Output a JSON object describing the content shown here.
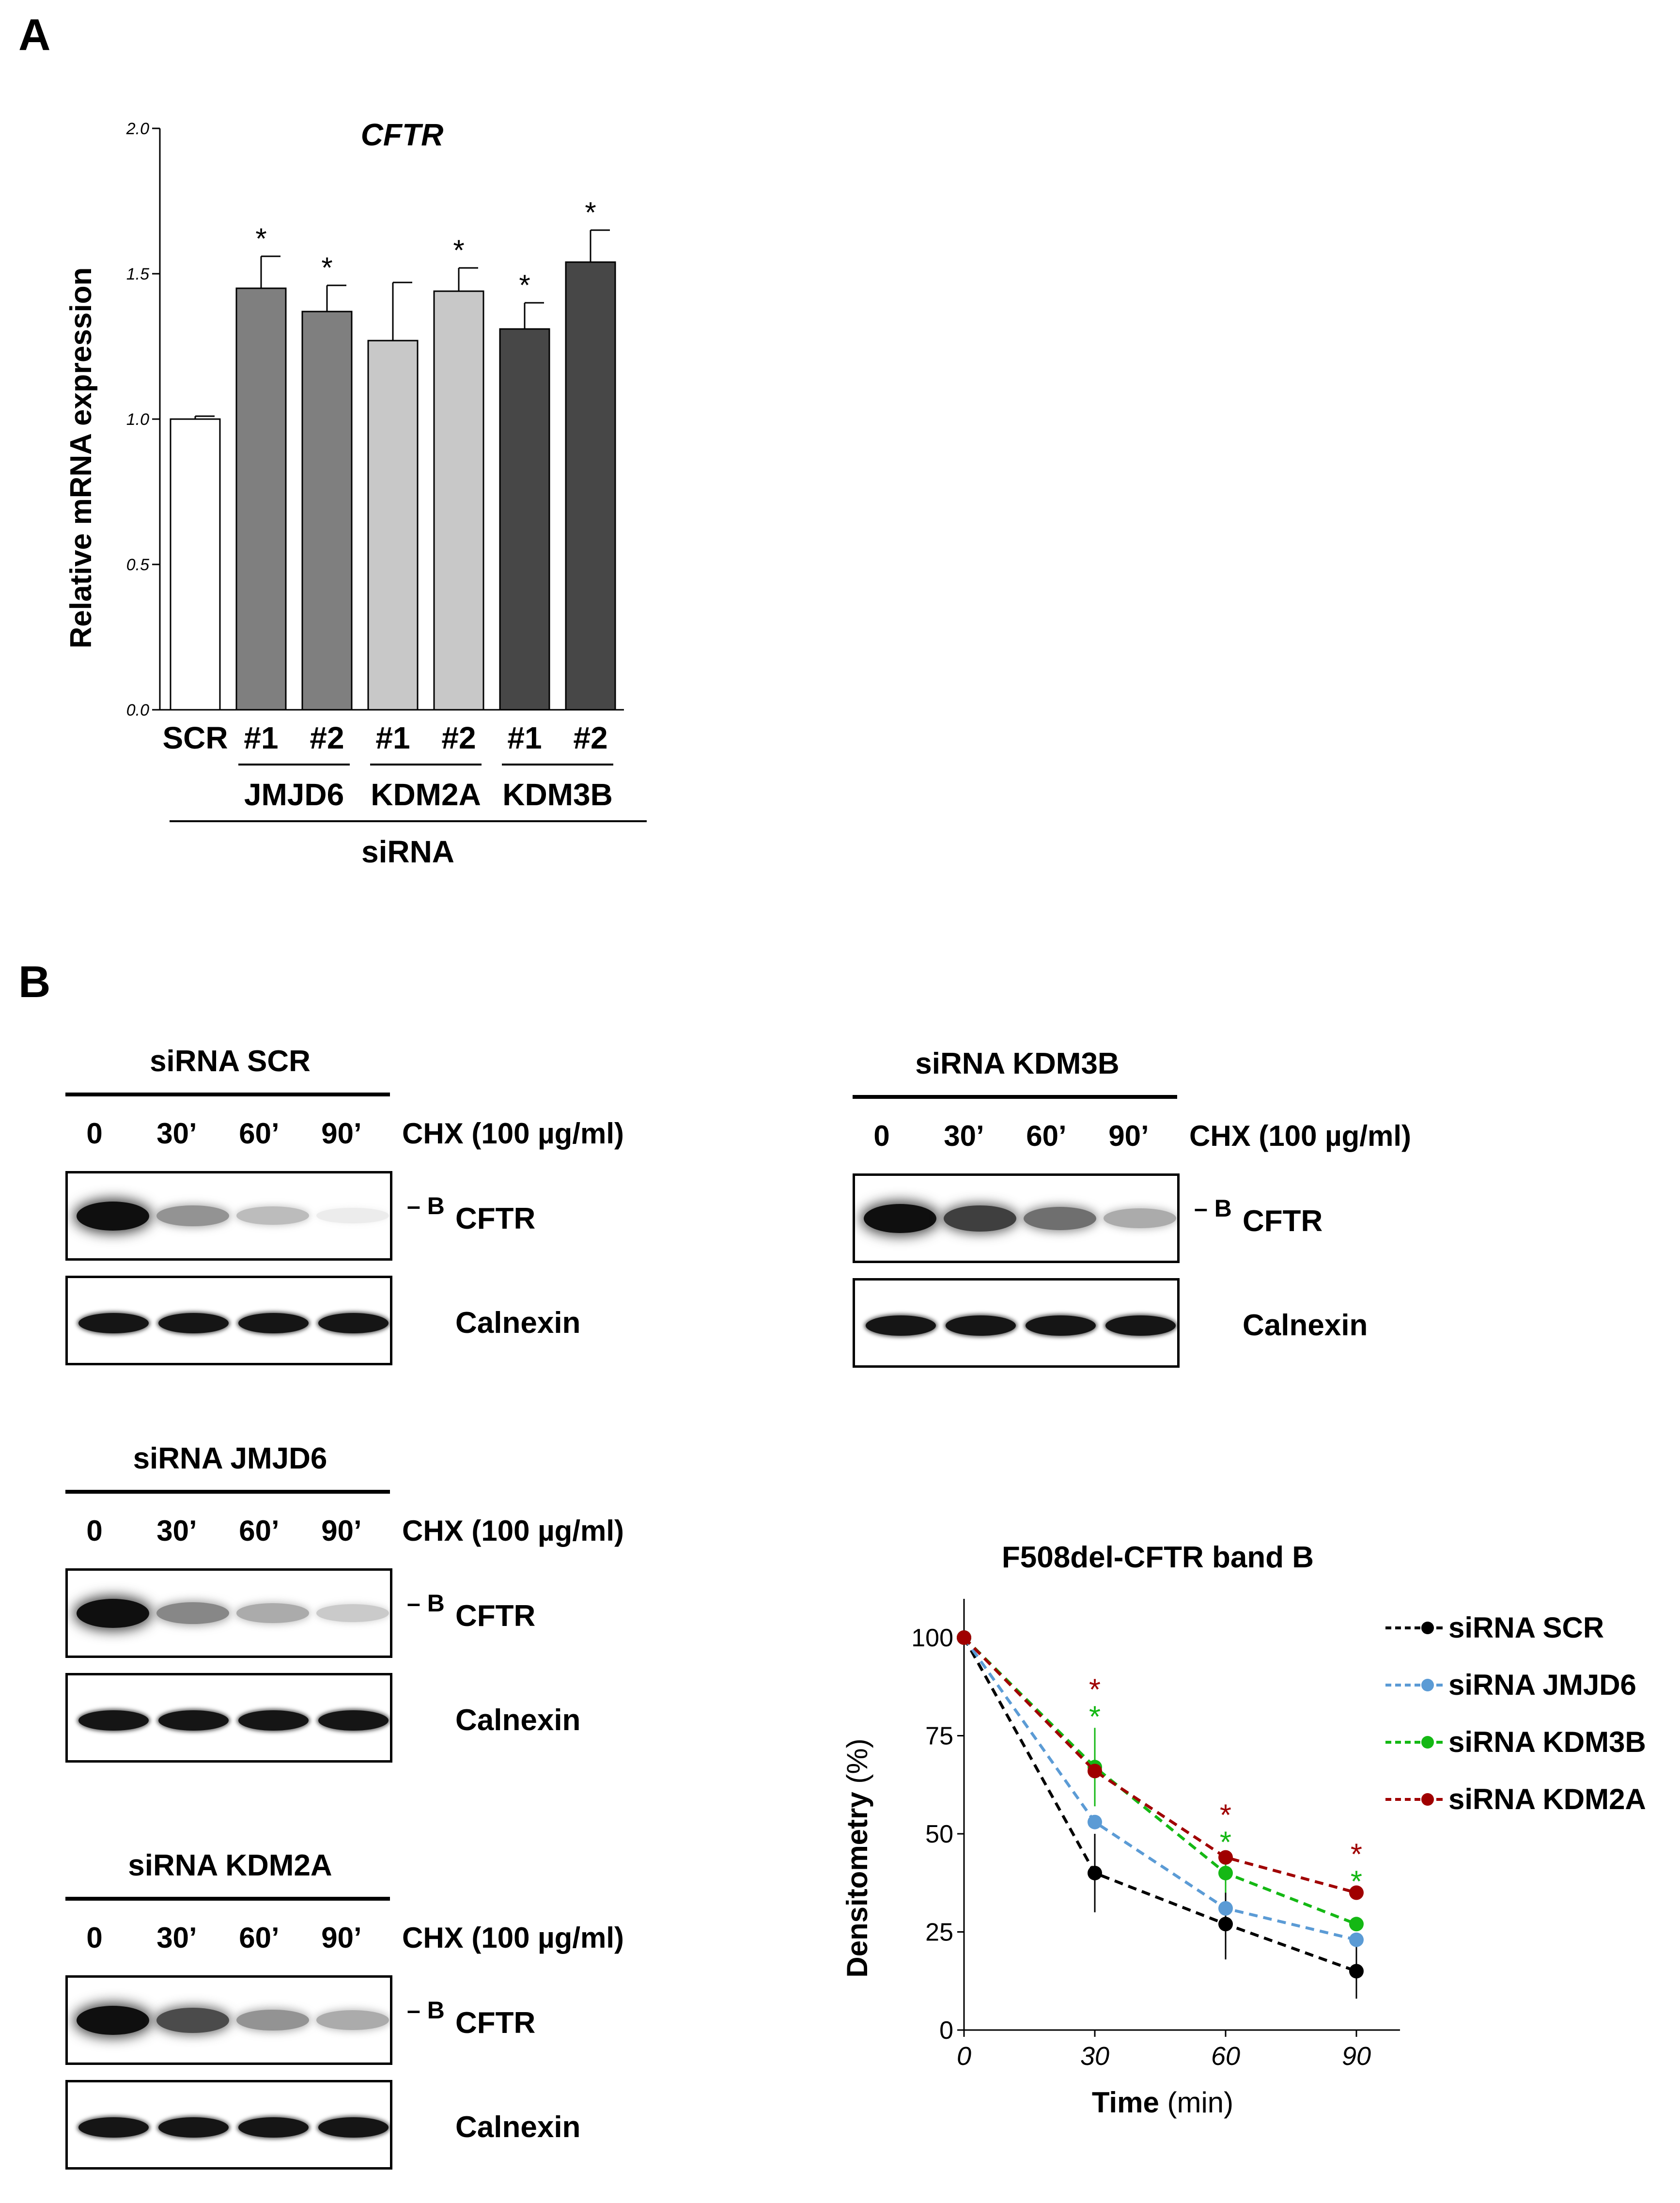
{
  "panel_a": {
    "letter": "A"
  },
  "panel_b": {
    "letter": "B"
  },
  "chart_data": [
    {
      "type": "bar",
      "title": "CFTR",
      "ylabel": "Relative mRNA expression",
      "ylim": [
        0,
        2.0
      ],
      "yticks": [
        "0.0",
        "0.5",
        "1.0",
        "1.5",
        "2.0"
      ],
      "categories": [
        "SCR",
        "#1",
        "#2",
        "#1",
        "#2",
        "#1",
        "#2"
      ],
      "values": [
        1.0,
        1.45,
        1.37,
        1.27,
        1.44,
        1.31,
        1.54
      ],
      "errors": [
        0.01,
        0.11,
        0.09,
        0.2,
        0.08,
        0.09,
        0.11
      ],
      "significance": [
        "",
        "*",
        "*",
        "",
        "*",
        "*",
        "*"
      ],
      "colors": [
        "#ffffff",
        "#7f7f7f",
        "#7f7f7f",
        "#c8c8c8",
        "#c8c8c8",
        "#474747",
        "#474747"
      ],
      "groups": [
        {
          "label": "JMJD6",
          "from": 1,
          "to": 2
        },
        {
          "label": "KDM2A",
          "from": 3,
          "to": 4
        },
        {
          "label": "KDM3B",
          "from": 5,
          "to": 6
        }
      ],
      "xlabel": "siRNA",
      "grid": false
    },
    {
      "type": "line",
      "title": "F508del-CFTR band B",
      "xlabel": "Time",
      "xunit": "(min)",
      "ylabel": "Densitometry",
      "yunit": "(%)",
      "x": [
        0,
        30,
        60,
        90
      ],
      "xlim": [
        0,
        100
      ],
      "ylim": [
        0,
        110
      ],
      "yticks": [
        "0",
        "25",
        "50",
        "75",
        "100"
      ],
      "xticks": [
        "0",
        "30",
        "60",
        "90"
      ],
      "legend_position": "right",
      "grid": false,
      "series": [
        {
          "name": "siRNA SCR",
          "color": "#000000",
          "values": [
            100,
            40,
            27,
            15
          ],
          "errors": [
            0,
            10,
            9,
            7
          ]
        },
        {
          "name": "siRNA JMJD6",
          "color": "#5b9bd5",
          "values": [
            100,
            53,
            31,
            23
          ],
          "errors": [
            0,
            0,
            0,
            0
          ]
        },
        {
          "name": "siRNA KDM3B",
          "color": "#14b814",
          "values": [
            100,
            67,
            40,
            27
          ],
          "errors": [
            0,
            10,
            5,
            0
          ]
        },
        {
          "name": "siRNA KDM2A",
          "color": "#a00000",
          "values": [
            100,
            66,
            44,
            35
          ],
          "errors": [
            0,
            0,
            0,
            0
          ]
        }
      ],
      "annotations": [
        {
          "x": 30,
          "stars": [
            {
              "symbol": "*",
              "color": "#a00000"
            },
            {
              "symbol": "*",
              "color": "#14b814"
            }
          ]
        },
        {
          "x": 60,
          "stars": [
            {
              "symbol": "*",
              "color": "#a00000"
            },
            {
              "symbol": "*",
              "color": "#14b814"
            }
          ]
        },
        {
          "x": 90,
          "stars": [
            {
              "symbol": "*",
              "color": "#a00000"
            },
            {
              "symbol": "*",
              "color": "#14b814"
            }
          ]
        }
      ]
    }
  ],
  "blots": {
    "time_labels": [
      "0",
      "30’",
      "60’",
      "90’"
    ],
    "chx_label": "CHX (100 µg/ml)",
    "band_marker": "B",
    "cftr_label": "CFTR",
    "calnexin_label": "Calnexin",
    "panels": [
      {
        "title": "siRNA SCR",
        "cftr_intensity": [
          1.0,
          0.45,
          0.28,
          0.08
        ]
      },
      {
        "title": "siRNA KDM3B",
        "cftr_intensity": [
          1.0,
          0.8,
          0.6,
          0.35
        ]
      },
      {
        "title": "siRNA JMJD6",
        "cftr_intensity": [
          1.0,
          0.5,
          0.35,
          0.22
        ]
      },
      {
        "title": "siRNA KDM2A",
        "cftr_intensity": [
          1.0,
          0.75,
          0.45,
          0.35
        ]
      }
    ]
  }
}
